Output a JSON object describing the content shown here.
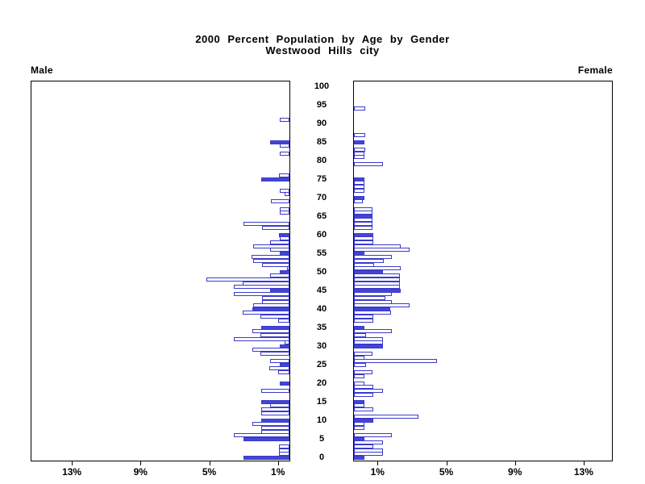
{
  "title": {
    "line1": "2000 Percent Population by Age by Gender",
    "line2": "Westwood Hills city"
  },
  "panel_labels": {
    "male": "Male",
    "female": "Female"
  },
  "colors": {
    "bar_fill": "#4444D6",
    "bar_outline": "#3A3ACE",
    "bar_empty_fill": "#FFFFFF",
    "axis": "#000000",
    "background": "#FFFFFF"
  },
  "chart_data": {
    "type": "bar",
    "subtype": "population-pyramid",
    "title": "2000 Percent Population by Age by Gender",
    "subtitle": "Westwood Hills city",
    "orientation": "horizontal-mirrored",
    "left_series_name": "Male",
    "right_series_name": "Female",
    "grid": false,
    "legend": "none",
    "x_axis": {
      "unit": "percent",
      "tick_pcts": [
        1,
        5,
        9,
        13
      ],
      "tick_labels": [
        "1%",
        "5%",
        "9%",
        "13%"
      ],
      "range_pct": [
        0,
        15
      ]
    },
    "y_axis": {
      "unit": "age-years",
      "min_age": 0,
      "max_age": 100,
      "label_step": 5,
      "age_tick_labels": [
        "0",
        "5",
        "10",
        "15",
        "20",
        "25",
        "30",
        "35",
        "40",
        "45",
        "50",
        "55",
        "60",
        "65",
        "70",
        "75",
        "80",
        "85",
        "90",
        "95",
        "100"
      ]
    },
    "fill_note": "filled=true bars are solid blue (generally ages divisible by 5); others are white with blue outline; ages omitted have zero value",
    "series": [
      {
        "name": "Male",
        "points": [
          [
            0,
            2.53,
            1
          ],
          [
            1,
            0.58,
            0
          ],
          [
            2,
            0.58,
            0
          ],
          [
            3,
            0.58,
            0
          ],
          [
            5,
            2.53,
            1
          ],
          [
            6,
            3.08,
            0
          ],
          [
            7,
            1.56,
            0
          ],
          [
            8,
            1.56,
            0
          ],
          [
            9,
            2.06,
            0
          ],
          [
            10,
            1.56,
            1
          ],
          [
            12,
            1.56,
            0
          ],
          [
            13,
            1.56,
            0
          ],
          [
            14,
            1.07,
            0
          ],
          [
            15,
            1.56,
            1
          ],
          [
            18,
            1.56,
            0
          ],
          [
            20,
            0.55,
            1
          ],
          [
            23,
            0.61,
            0
          ],
          [
            24,
            1.11,
            0
          ],
          [
            25,
            0.55,
            1
          ],
          [
            26,
            1.05,
            0
          ],
          [
            28,
            1.59,
            0
          ],
          [
            29,
            2.03,
            0
          ],
          [
            30,
            0.55,
            1
          ],
          [
            31,
            0.28,
            0
          ],
          [
            32,
            3.07,
            0
          ],
          [
            33,
            1.59,
            0
          ],
          [
            34,
            2.03,
            0
          ],
          [
            35,
            1.54,
            1
          ],
          [
            37,
            0.61,
            0
          ],
          [
            38,
            1.59,
            0
          ],
          [
            39,
            2.58,
            0
          ],
          [
            40,
            2.03,
            1
          ],
          [
            41,
            1.99,
            0
          ],
          [
            42,
            1.51,
            0
          ],
          [
            43,
            1.51,
            0
          ],
          [
            44,
            3.07,
            0
          ],
          [
            45,
            1.08,
            1
          ],
          [
            46,
            3.07,
            0
          ],
          [
            47,
            2.58,
            0
          ],
          [
            48,
            4.58,
            0
          ],
          [
            49,
            1.08,
            0
          ],
          [
            50,
            0.55,
            1
          ],
          [
            51,
            0.15,
            0
          ],
          [
            52,
            1.51,
            0
          ],
          [
            53,
            1.99,
            0
          ],
          [
            54,
            2.09,
            0
          ],
          [
            55,
            0.55,
            1
          ],
          [
            56,
            1.07,
            0
          ],
          [
            57,
            1.98,
            0
          ],
          [
            58,
            1.07,
            0
          ],
          [
            59,
            0.53,
            0
          ],
          [
            60,
            0.6,
            1
          ],
          [
            62,
            1.51,
            0
          ],
          [
            63,
            2.55,
            0
          ],
          [
            66,
            0.55,
            0
          ],
          [
            67,
            0.55,
            0
          ],
          [
            69,
            1.02,
            0
          ],
          [
            71,
            0.28,
            0
          ],
          [
            72,
            0.53,
            0
          ],
          [
            75,
            1.54,
            1
          ],
          [
            76,
            0.59,
            0
          ],
          [
            82,
            0.55,
            0
          ],
          [
            84,
            0.55,
            0
          ],
          [
            85,
            1.08,
            1
          ],
          [
            91,
            0.55,
            0
          ]
        ]
      },
      {
        "name": "Female",
        "points": [
          [
            0,
            0.56,
            1
          ],
          [
            1,
            1.6,
            0
          ],
          [
            2,
            1.6,
            0
          ],
          [
            3,
            1.07,
            0
          ],
          [
            4,
            1.6,
            0
          ],
          [
            5,
            0.56,
            1
          ],
          [
            6,
            2.07,
            0
          ],
          [
            8,
            0.56,
            0
          ],
          [
            9,
            0.56,
            0
          ],
          [
            10,
            1.07,
            1
          ],
          [
            11,
            3.56,
            0
          ],
          [
            13,
            1.07,
            0
          ],
          [
            14,
            0.56,
            0
          ],
          [
            15,
            0.56,
            1
          ],
          [
            17,
            1.07,
            0
          ],
          [
            18,
            1.6,
            0
          ],
          [
            19,
            1.07,
            0
          ],
          [
            20,
            0.56,
            0
          ],
          [
            22,
            0.56,
            0
          ],
          [
            23,
            1.04,
            0
          ],
          [
            25,
            0.67,
            0
          ],
          [
            26,
            4.56,
            0
          ],
          [
            27,
            0.56,
            0
          ],
          [
            28,
            1.04,
            0
          ],
          [
            30,
            1.6,
            1
          ],
          [
            31,
            1.6,
            0
          ],
          [
            32,
            1.6,
            0
          ],
          [
            33,
            0.67,
            0
          ],
          [
            34,
            2.07,
            0
          ],
          [
            35,
            0.56,
            1
          ],
          [
            37,
            1.07,
            0
          ],
          [
            38,
            1.07,
            0
          ],
          [
            39,
            2.03,
            0
          ],
          [
            40,
            2.0,
            1
          ],
          [
            41,
            3.08,
            0
          ],
          [
            42,
            2.07,
            0
          ],
          [
            43,
            1.74,
            0
          ],
          [
            44,
            2.07,
            0
          ],
          [
            45,
            2.59,
            1
          ],
          [
            46,
            2.52,
            0
          ],
          [
            47,
            2.52,
            0
          ],
          [
            48,
            2.52,
            0
          ],
          [
            49,
            2.52,
            0
          ],
          [
            50,
            1.6,
            1
          ],
          [
            51,
            2.56,
            0
          ],
          [
            52,
            1.11,
            0
          ],
          [
            53,
            1.63,
            0
          ],
          [
            54,
            2.07,
            0
          ],
          [
            55,
            0.56,
            1
          ],
          [
            56,
            3.08,
            0
          ],
          [
            57,
            2.56,
            0
          ],
          [
            58,
            1.07,
            0
          ],
          [
            59,
            1.07,
            0
          ],
          [
            60,
            1.07,
            1
          ],
          [
            62,
            1.04,
            0
          ],
          [
            63,
            1.04,
            0
          ],
          [
            64,
            1.04,
            0
          ],
          [
            65,
            1.04,
            1
          ],
          [
            66,
            1.04,
            0
          ],
          [
            67,
            1.04,
            0
          ],
          [
            69,
            0.5,
            0
          ],
          [
            70,
            0.56,
            1
          ],
          [
            72,
            0.59,
            0
          ],
          [
            73,
            0.59,
            0
          ],
          [
            74,
            0.59,
            0
          ],
          [
            75,
            0.56,
            1
          ],
          [
            79,
            1.6,
            0
          ],
          [
            81,
            0.59,
            0
          ],
          [
            82,
            0.59,
            0
          ],
          [
            83,
            0.6,
            0
          ],
          [
            85,
            0.56,
            1
          ],
          [
            87,
            0.6,
            0
          ],
          [
            94,
            0.6,
            0
          ]
        ]
      }
    ]
  }
}
